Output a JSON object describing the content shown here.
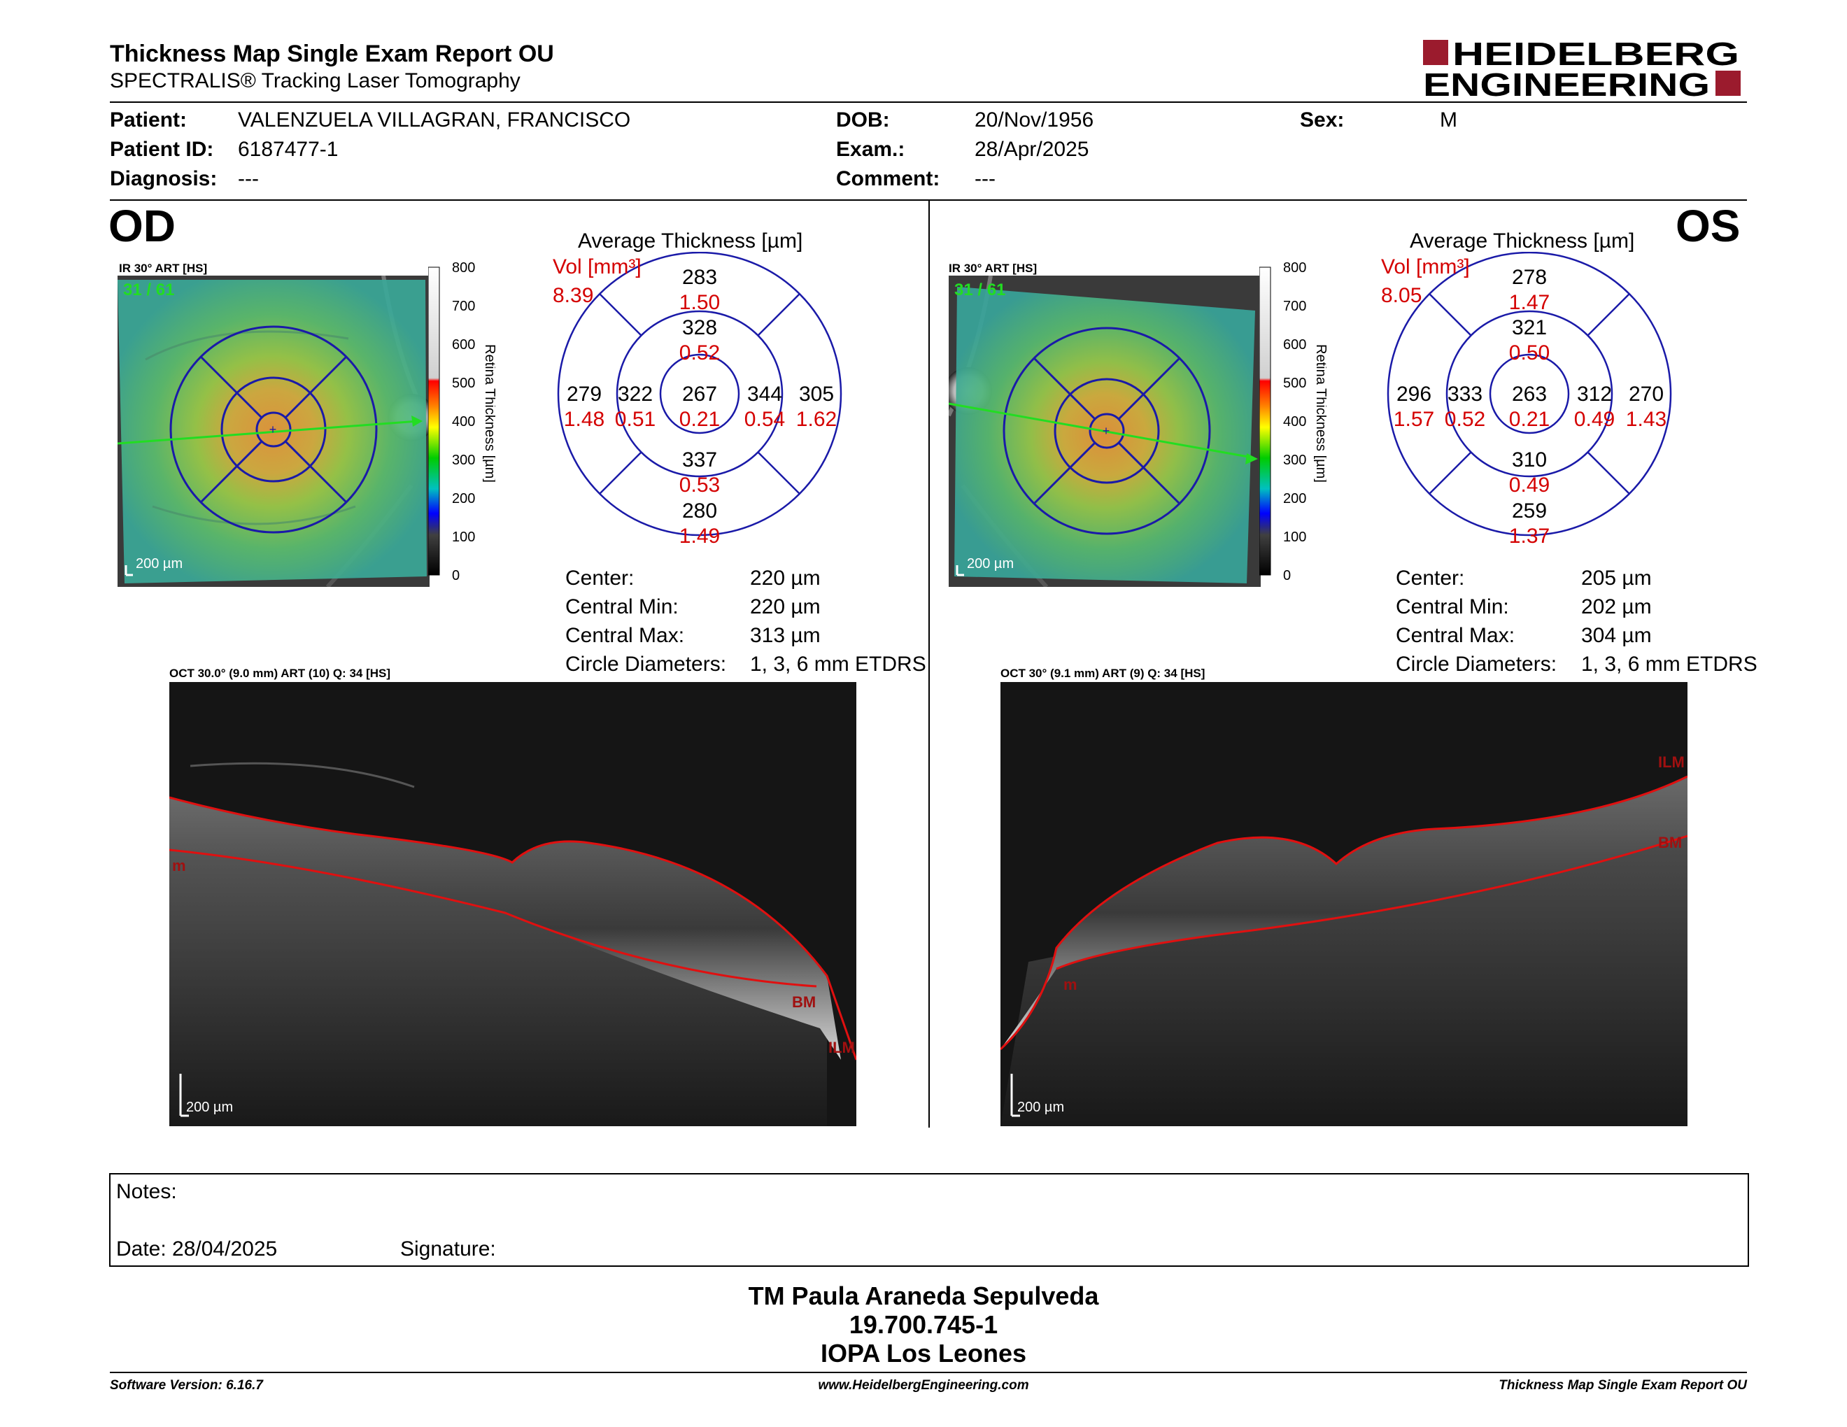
{
  "header": {
    "title": "Thickness Map Single Exam Report OU",
    "subtitle": "SPECTRALIS® Tracking Laser Tomography",
    "logo_line1": "HEIDELBERG",
    "logo_line2": "ENGINEERING",
    "logo_color": "#9b1b2d"
  },
  "patient": {
    "patient_label": "Patient:",
    "patient_value": "VALENZUELA VILLAGRAN, FRANCISCO",
    "id_label": "Patient ID:",
    "id_value": "6187477-1",
    "diagnosis_label": "Diagnosis:",
    "diagnosis_value": "---",
    "dob_label": "DOB:",
    "dob_value": "20/Nov/1956",
    "exam_label": "Exam.:",
    "exam_value": "28/Apr/2025",
    "comment_label": "Comment:",
    "comment_value": "---",
    "sex_label": "Sex:",
    "sex_value": "M"
  },
  "scale_ticks": [
    "800",
    "700",
    "600",
    "500",
    "400",
    "300",
    "200",
    "100",
    "0"
  ],
  "scale_axis_label": "Retina Thickness [µm]",
  "od": {
    "eye_label": "OD",
    "fundus_label": "IR 30° ART [HS]",
    "frame_label": "31 / 61",
    "scalebar_label": "200 µm",
    "avg_title": "Average Thickness [µm]",
    "vol_label": "Vol [mm³]",
    "vol_value": "8.39",
    "grid": {
      "outer_sup": {
        "t": "283",
        "v": "1.50"
      },
      "inner_sup": {
        "t": "328",
        "v": "0.52"
      },
      "outer_temp": {
        "t": "279",
        "v": "1.48"
      },
      "inner_temp": {
        "t": "322",
        "v": "0.51"
      },
      "center": {
        "t": "267",
        "v": "0.21"
      },
      "inner_nasal": {
        "t": "344",
        "v": "0.54"
      },
      "outer_nasal": {
        "t": "305",
        "v": "1.62"
      },
      "inner_inf": {
        "t": "337",
        "v": "0.53"
      },
      "outer_inf": {
        "t": "280",
        "v": "1.49"
      }
    },
    "stats": {
      "center_label": "Center:",
      "center_value": "220 µm",
      "cmin_label": "Central Min:",
      "cmin_value": "220 µm",
      "cmax_label": "Central Max:",
      "cmax_value": "313 µm",
      "circ_label": "Circle Diameters:",
      "circ_value": "1, 3, 6 mm ETDRS"
    },
    "oct_label": "OCT 30.0° (9.0 mm) ART (10) Q: 34 [HS]",
    "oct_scalebar": "200 µm",
    "layer_ilm": "ILM",
    "layer_bm": "BM",
    "layer_m": "m"
  },
  "os": {
    "eye_label": "OS",
    "fundus_label": "IR 30° ART [HS]",
    "frame_label": "31 / 61",
    "scalebar_label": "200 µm",
    "avg_title": "Average Thickness [µm]",
    "vol_label": "Vol [mm³]",
    "vol_value": "8.05",
    "grid": {
      "outer_sup": {
        "t": "278",
        "v": "1.47"
      },
      "inner_sup": {
        "t": "321",
        "v": "0.50"
      },
      "outer_temp": {
        "t": "296",
        "v": "1.57"
      },
      "inner_temp": {
        "t": "333",
        "v": "0.52"
      },
      "center": {
        "t": "263",
        "v": "0.21"
      },
      "inner_nasal": {
        "t": "312",
        "v": "0.49"
      },
      "outer_nasal": {
        "t": "270",
        "v": "1.43"
      },
      "inner_inf": {
        "t": "310",
        "v": "0.49"
      },
      "outer_inf": {
        "t": "259",
        "v": "1.37"
      }
    },
    "stats": {
      "center_label": "Center:",
      "center_value": "205 µm",
      "cmin_label": "Central Min:",
      "cmin_value": "202 µm",
      "cmax_label": "Central Max:",
      "cmax_value": "304 µm",
      "circ_label": "Circle Diameters:",
      "circ_value": "1, 3, 6 mm ETDRS"
    },
    "oct_label": "OCT 30° (9.1 mm) ART (9) Q: 34 [HS]",
    "oct_scalebar": "200 µm",
    "layer_ilm": "ILM",
    "layer_bm": "BM",
    "layer_m": "m"
  },
  "notes": {
    "notes_label": "Notes:",
    "date_label": "Date: 28/04/2025",
    "signature_label": "Signature:"
  },
  "signature_block": {
    "line1": "TM Paula Araneda Sepulveda",
    "line2": "19.700.745-1",
    "line3": "IOPA Los Leones"
  },
  "footer": {
    "software": "Software Version: 6.16.7",
    "website": "www.HeidelbergEngineering.com",
    "report": "Thickness Map Single Exam Report OU"
  },
  "colors": {
    "grid_blue": "#1a1aa8",
    "value_red": "#d40000",
    "frame_green": "#22dd22",
    "layer_red": "#e01010"
  }
}
